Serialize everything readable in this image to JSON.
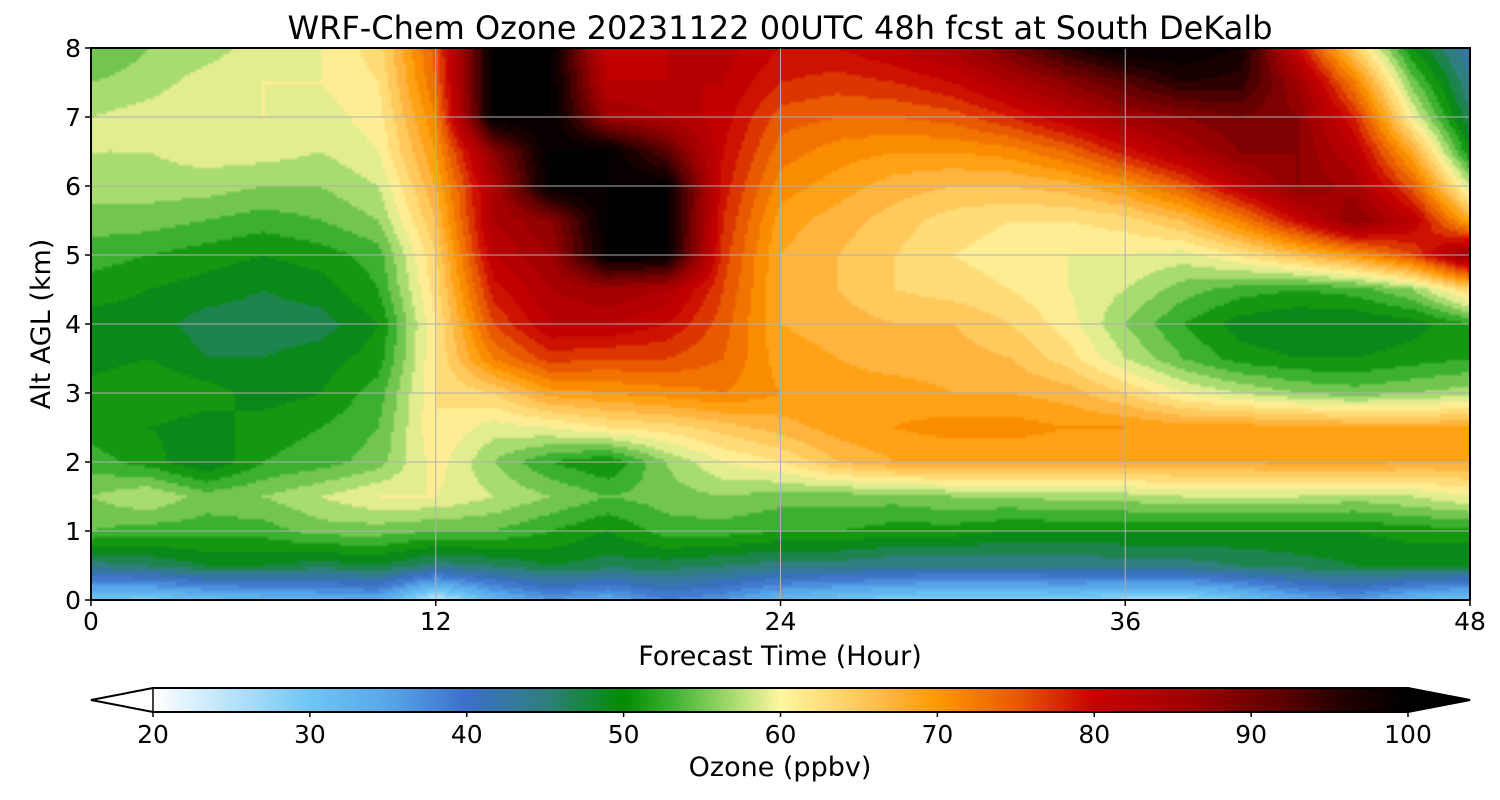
{
  "chart_data": {
    "type": "heatmap",
    "title": "WRF-Chem Ozone  20231122 00UTC 48h fcst at South DeKalb",
    "xlabel": "Forecast Time (Hour)",
    "ylabel": "Alt AGL (km)",
    "xlim": [
      0,
      48
    ],
    "ylim": [
      0,
      8
    ],
    "xticks": [
      "0",
      "12",
      "24",
      "36",
      "48"
    ],
    "xtick_values": [
      0,
      12,
      24,
      36,
      48
    ],
    "yticks": [
      "0",
      "1",
      "2",
      "3",
      "4",
      "5",
      "6",
      "7",
      "8"
    ],
    "ytick_values": [
      0,
      1,
      2,
      3,
      4,
      5,
      6,
      7,
      8
    ],
    "grid": true,
    "x_hours": [
      0,
      2,
      4,
      6,
      8,
      10,
      12,
      14,
      16,
      18,
      20,
      22,
      24,
      26,
      28,
      30,
      32,
      34,
      36,
      38,
      40,
      42,
      44,
      46,
      48
    ],
    "y_km": [
      0,
      0.5,
      1,
      1.5,
      2,
      2.5,
      3,
      3.5,
      4,
      4.5,
      5,
      5.5,
      6,
      6.5,
      7,
      7.5,
      8
    ],
    "values_ppbv": [
      [
        30,
        29,
        31,
        32,
        33,
        34,
        24,
        32,
        36,
        34,
        38,
        36,
        32,
        30,
        29,
        28,
        28,
        29,
        27,
        27,
        30,
        34,
        36,
        32,
        30
      ],
      [
        45,
        46,
        48,
        48,
        47,
        48,
        45,
        46,
        48,
        47,
        47,
        46,
        45,
        45,
        44,
        44,
        44,
        44,
        45,
        45,
        46,
        47,
        48,
        48,
        48
      ],
      [
        54,
        53,
        53,
        53,
        55,
        55,
        54,
        54,
        52,
        50,
        53,
        53,
        52,
        52,
        51,
        51,
        50,
        50,
        50,
        50,
        50,
        50,
        50,
        51,
        51
      ],
      [
        56,
        58,
        55,
        56,
        58,
        60,
        60,
        58,
        56,
        54,
        55,
        56,
        55,
        55,
        55,
        56,
        56,
        57,
        57,
        58,
        58,
        58,
        57,
        58,
        60
      ],
      [
        53,
        51,
        48,
        52,
        53,
        55,
        61,
        56,
        52,
        50,
        56,
        60,
        62,
        66,
        68,
        68,
        68,
        68,
        68,
        68,
        68,
        69,
        69,
        68,
        68
      ],
      [
        51,
        50,
        49,
        51,
        52,
        54,
        62,
        59,
        60,
        62,
        63,
        65,
        67,
        69,
        70,
        71,
        71,
        70,
        70,
        69,
        69,
        69,
        68,
        68,
        68
      ],
      [
        51,
        52,
        51,
        49,
        50,
        53,
        62,
        64,
        69,
        70,
        71,
        72,
        70,
        69,
        69,
        68,
        68,
        67,
        64,
        60,
        58,
        56,
        55,
        56,
        57
      ],
      [
        49,
        50,
        48,
        48,
        49,
        51,
        62,
        72,
        77,
        76,
        76,
        74,
        69,
        68,
        67,
        67,
        66,
        63,
        58,
        54,
        51,
        50,
        50,
        51,
        52
      ],
      [
        49,
        49,
        47,
        47,
        47,
        50,
        62,
        76,
        82,
        82,
        80,
        75,
        68,
        67,
        66,
        66,
        64,
        61,
        56,
        52,
        49,
        48,
        48,
        49,
        52
      ],
      [
        51,
        50,
        49,
        48,
        49,
        52,
        63,
        79,
        84,
        86,
        84,
        76,
        68,
        66,
        64,
        63,
        62,
        60,
        58,
        55,
        53,
        52,
        53,
        56,
        64
      ],
      [
        53,
        52,
        51,
        50,
        51,
        53,
        64,
        82,
        86,
        100,
        100,
        77,
        68,
        66,
        64,
        62,
        61,
        60,
        60,
        59,
        62,
        66,
        70,
        76,
        88
      ],
      [
        55,
        55,
        54,
        53,
        54,
        56,
        66,
        84,
        88,
        100,
        100,
        78,
        69,
        67,
        65,
        63,
        62,
        62,
        63,
        66,
        72,
        80,
        88,
        82,
        68
      ],
      [
        57,
        57,
        57,
        56,
        56,
        58,
        68,
        84,
        100,
        100,
        100,
        79,
        71,
        69,
        67,
        66,
        66,
        67,
        70,
        75,
        82,
        88,
        85,
        75,
        58
      ],
      [
        58,
        58,
        59,
        59,
        58,
        60,
        70,
        88,
        100,
        100,
        92,
        80,
        73,
        71,
        70,
        70,
        71,
        74,
        79,
        84,
        88,
        88,
        82,
        68,
        50
      ],
      [
        58,
        59,
        60,
        60,
        59,
        61,
        72,
        100,
        100,
        86,
        84,
        81,
        75,
        74,
        74,
        75,
        78,
        82,
        86,
        88,
        90,
        88,
        78,
        60,
        46
      ],
      [
        56,
        57,
        59,
        60,
        60,
        62,
        74,
        100,
        100,
        82,
        82,
        82,
        78,
        77,
        78,
        80,
        84,
        88,
        92,
        96,
        95,
        86,
        72,
        55,
        44
      ],
      [
        54,
        56,
        57,
        59,
        60,
        63,
        75,
        100,
        100,
        80,
        82,
        83,
        80,
        80,
        82,
        85,
        90,
        96,
        100,
        100,
        98,
        80,
        64,
        50,
        42
      ]
    ],
    "colorbar": {
      "label": "Ozone  (ppbv)",
      "ticks": [
        "20",
        "30",
        "40",
        "50",
        "60",
        "70",
        "80",
        "90",
        "100"
      ],
      "tick_values": [
        20,
        30,
        40,
        50,
        60,
        70,
        80,
        90,
        100
      ],
      "range": [
        20,
        100
      ],
      "extend": "both",
      "colors": {
        "20": "#ffffff",
        "25": "#b8e2fa",
        "30": "#6ec6f5",
        "35": "#57a6e8",
        "40": "#3c6fc9",
        "45": "#2f7f7f",
        "50": "#008c00",
        "53": "#3cb030",
        "57": "#a8dc70",
        "60": "#fff6a0",
        "64": "#ffd36a",
        "67": "#ffb440",
        "70": "#ff9900",
        "75": "#e85a00",
        "80": "#c80000",
        "86": "#a00000",
        "92": "#5c0000",
        "96": "#200000",
        "100": "#000000"
      }
    }
  }
}
